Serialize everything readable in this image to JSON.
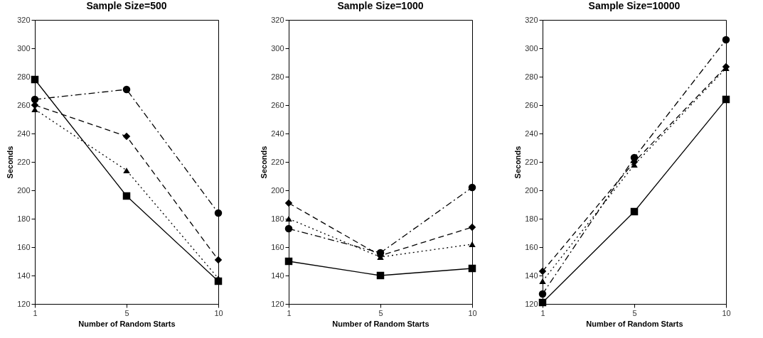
{
  "chart_data": [
    {
      "type": "line",
      "title": "Sample Size=500",
      "xlabel": "Number of Random Starts",
      "ylabel": "Seconds",
      "categories": [
        "1",
        "5",
        "10"
      ],
      "ylim": [
        120,
        320
      ],
      "yticks": [
        120,
        140,
        160,
        180,
        200,
        220,
        240,
        260,
        280,
        300,
        320
      ],
      "grid": false,
      "legend": false,
      "series": [
        {
          "color": "#000000",
          "marker": "square",
          "line_style": "solid",
          "values": [
            278,
            196,
            136
          ]
        },
        {
          "color": "#000000",
          "marker": "diamond",
          "line_style": "dashed",
          "values": [
            260,
            238,
            151
          ]
        },
        {
          "color": "#000000",
          "marker": "triangle",
          "line_style": "dotted",
          "values": [
            257,
            214,
            138
          ]
        },
        {
          "color": "#000000",
          "marker": "circle",
          "line_style": "dashdot",
          "values": [
            264,
            271,
            184
          ]
        }
      ]
    },
    {
      "type": "line",
      "title": "Sample Size=1000",
      "xlabel": "Number of Random Starts",
      "ylabel": "Seconds",
      "categories": [
        "1",
        "5",
        "10"
      ],
      "ylim": [
        120,
        320
      ],
      "yticks": [
        120,
        140,
        160,
        180,
        200,
        220,
        240,
        260,
        280,
        300,
        320
      ],
      "grid": false,
      "legend": false,
      "series": [
        {
          "color": "#000000",
          "marker": "square",
          "line_style": "solid",
          "values": [
            150,
            140,
            145
          ]
        },
        {
          "color": "#000000",
          "marker": "diamond",
          "line_style": "dashed",
          "values": [
            191,
            154,
            174
          ]
        },
        {
          "color": "#000000",
          "marker": "triangle",
          "line_style": "dotted",
          "values": [
            180,
            153,
            162
          ]
        },
        {
          "color": "#000000",
          "marker": "circle",
          "line_style": "dashdot",
          "values": [
            173,
            156,
            202
          ]
        }
      ]
    },
    {
      "type": "line",
      "title": "Sample Size=10000",
      "xlabel": "Number of Random Starts",
      "ylabel": "Seconds",
      "categories": [
        "1",
        "5",
        "10"
      ],
      "ylim": [
        120,
        320
      ],
      "yticks": [
        120,
        140,
        160,
        180,
        200,
        220,
        240,
        260,
        280,
        300,
        320
      ],
      "grid": false,
      "legend": false,
      "series": [
        {
          "color": "#000000",
          "marker": "square",
          "line_style": "solid",
          "values": [
            121,
            185,
            264
          ]
        },
        {
          "color": "#000000",
          "marker": "diamond",
          "line_style": "dashed",
          "values": [
            143,
            220,
            287
          ]
        },
        {
          "color": "#000000",
          "marker": "triangle",
          "line_style": "dotted",
          "values": [
            136,
            218,
            286
          ]
        },
        {
          "color": "#000000",
          "marker": "circle",
          "line_style": "dashdot",
          "values": [
            127,
            223,
            306
          ]
        }
      ]
    }
  ]
}
